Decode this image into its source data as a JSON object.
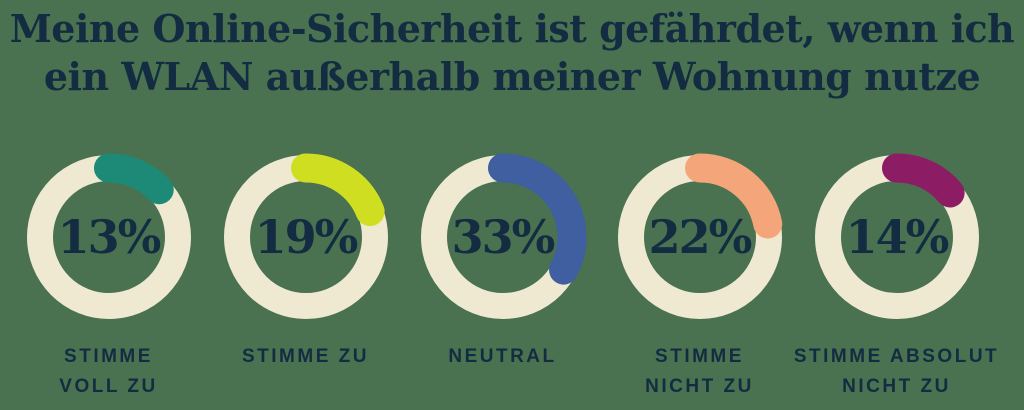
{
  "background_color": "#4a7150",
  "text_color": "#142c42",
  "ring_color": "#efe9d2",
  "title": {
    "line1": "Meine Online-Sicherheit ist gefährdet, wenn ich",
    "line2": "ein WLAN außerhalb meiner Wohnung nutze"
  },
  "chart_data": {
    "type": "pie",
    "subtype": "donut-gauge-set",
    "title": "Meine Online-Sicherheit ist gefährdet, wenn ich ein WLAN außerhalb meiner Wohnung nutze",
    "unit": "%",
    "categories": [
      "STIMME VOLL ZU",
      "STIMME ZU",
      "NEUTRAL",
      "STIMME NICHT ZU",
      "STIMME ABSOLUT NICHT ZU"
    ],
    "values": [
      13,
      19,
      33,
      22,
      14
    ],
    "layout_hints": {
      "arc_start": "12 o'clock",
      "arc_direction": "clockwise",
      "arc_caps": "rounded",
      "track_color": "#efe9d2"
    },
    "items": [
      {
        "display": "13%",
        "value": 13,
        "color": "#1c8a76",
        "label_lines": [
          "STIMME",
          "VOLL ZU"
        ]
      },
      {
        "display": "19%",
        "value": 19,
        "color": "#d0de21",
        "label_lines": [
          "STIMME ZU"
        ]
      },
      {
        "display": "33%",
        "value": 33,
        "color": "#3f5fa0",
        "label_lines": [
          "NEUTRAL"
        ]
      },
      {
        "display": "22%",
        "value": 22,
        "color": "#f4a67a",
        "label_lines": [
          "STIMME",
          "NICHT ZU"
        ]
      },
      {
        "display": "14%",
        "value": 14,
        "color": "#8c1c64",
        "label_lines": [
          "STIMME ABSOLUT",
          "NICHT ZU"
        ]
      }
    ]
  }
}
